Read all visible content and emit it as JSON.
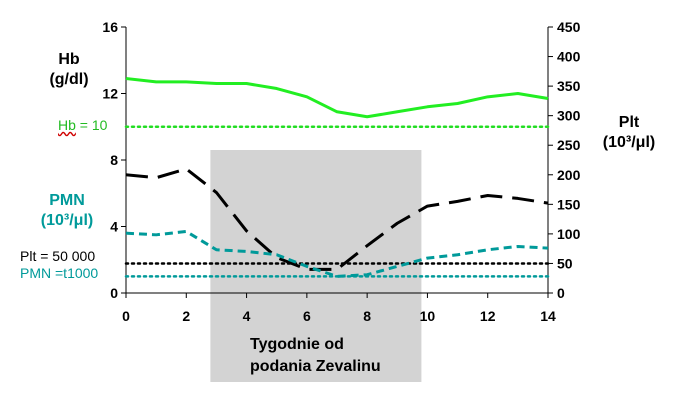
{
  "chart_data": {
    "type": "line",
    "x": [
      0,
      1,
      2,
      3,
      4,
      5,
      6,
      7,
      8,
      9,
      10,
      11,
      12,
      13,
      14
    ],
    "xlim": [
      0,
      14
    ],
    "x_ticks": [
      "0",
      "2",
      "4",
      "6",
      "8",
      "10",
      "12",
      "14"
    ],
    "x_tick_values": [
      0,
      2,
      4,
      6,
      8,
      10,
      12,
      14
    ],
    "xlabel_line1": "Tygodnie od",
    "xlabel_line2": "podania Zevalinu",
    "shaded_x_range": [
      2.8,
      9.8
    ],
    "left_axis": {
      "ylim": [
        0,
        16
      ],
      "ticks": [
        "0",
        "4",
        "8",
        "12",
        "16"
      ],
      "tick_values": [
        0,
        4,
        8,
        12,
        16
      ],
      "label_line1": "Hb",
      "label_line2": "(g/dl)",
      "label2_line1": "PMN",
      "label2_line2": "(10³/μl)"
    },
    "right_axis": {
      "ylim": [
        0,
        450
      ],
      "ticks": [
        "0",
        "50",
        "100",
        "150",
        "200",
        "250",
        "300",
        "350",
        "400",
        "450"
      ],
      "tick_values": [
        0,
        50,
        100,
        150,
        200,
        250,
        300,
        350,
        400,
        450
      ],
      "label_line1": "Plt",
      "label_line2": "(10³/μl)"
    },
    "series": [
      {
        "key": "hb",
        "axis": "left",
        "color": "#22ee22",
        "dash": "solid",
        "values": [
          12.9,
          12.7,
          12.7,
          12.6,
          12.6,
          12.3,
          11.8,
          10.9,
          10.6,
          10.9,
          11.2,
          11.4,
          11.8,
          12.0,
          11.7
        ]
      },
      {
        "key": "plt",
        "axis": "right",
        "color": "#000000",
        "dash": "longdash",
        "values": [
          200,
          195,
          210,
          170,
          105,
          60,
          40,
          40,
          80,
          118,
          147,
          155,
          165,
          160,
          152
        ]
      },
      {
        "key": "pmn",
        "axis": "left",
        "color": "#009a9a",
        "dash": "shortdash",
        "values": [
          3.6,
          3.5,
          3.7,
          2.6,
          2.5,
          2.3,
          1.6,
          1.0,
          1.1,
          1.6,
          2.1,
          2.3,
          2.6,
          2.8,
          2.7
        ]
      }
    ],
    "reference_lines": [
      {
        "key": "hb_ref",
        "axis": "left",
        "value": 10,
        "color": "#22dd22",
        "label_prefix": "Hb",
        "label_suffix": " = 10"
      },
      {
        "key": "plt_ref",
        "axis": "right",
        "value": 50,
        "color": "#000000",
        "label": "Plt = 50 000"
      },
      {
        "key": "pmn_ref",
        "axis": "left",
        "value": 1,
        "color": "#009a9a",
        "label": "PMN =t1000"
      }
    ]
  },
  "colors": {
    "hb": "#22ee22",
    "pmn_text": "#009a9a",
    "shading": "#d3d3d3"
  }
}
